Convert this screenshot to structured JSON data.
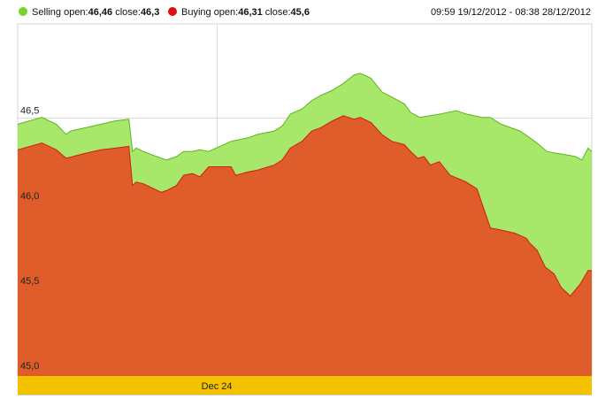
{
  "legend": {
    "selling": {
      "prefix": "Selling open:",
      "open": "46,46",
      "close_label": " close:",
      "close": "46,3",
      "color": "#77d22b"
    },
    "buying": {
      "prefix": "Buying open:",
      "open": "46,31",
      "close_label": " close:",
      "close": "45,6",
      "color": "#e01010"
    },
    "range": "09:59 19/12/2012 - 08:38 28/12/2012"
  },
  "chart_data": {
    "type": "area",
    "ylim": [
      44.98,
      47.05
    ],
    "y_ticks": [
      {
        "value": 46.5,
        "label": "46,5"
      },
      {
        "value": 46.0,
        "label": "46,0"
      },
      {
        "value": 45.5,
        "label": "45,5"
      },
      {
        "value": 45.0,
        "label": "45,0"
      }
    ],
    "x_range": [
      0,
      64
    ],
    "x_markers": [
      {
        "x": 22.2,
        "label": "Dec 24"
      }
    ],
    "grid": true,
    "legend_position": "top-left",
    "series": [
      {
        "name": "Selling",
        "fill": "#a7e86a",
        "stroke": "#5bb51d",
        "x": [
          0,
          2.7,
          4.3,
          5.4,
          5.9,
          7.6,
          9.3,
          10.9,
          12.4,
          12.8,
          13.2,
          14.0,
          16.0,
          16.6,
          17.7,
          18.5,
          19.5,
          20.3,
          21.3,
          23.8,
          25.7,
          26.7,
          28.6,
          29.5,
          30.4,
          31.7,
          32.8,
          33.8,
          35.1,
          36.3,
          37.5,
          38.2,
          39.4,
          40.6,
          41.7,
          43.1,
          43.8,
          44.8,
          46.0,
          47.1,
          48.9,
          50.0,
          51.8,
          52.7,
          53.9,
          56.0,
          57.1,
          57.9,
          59.0,
          60.0,
          61.2,
          62.2,
          62.9,
          63.6,
          64.0
        ],
        "y": [
          46.46,
          46.5,
          46.46,
          46.4,
          46.42,
          46.44,
          46.46,
          46.48,
          46.49,
          46.3,
          46.32,
          46.3,
          46.26,
          46.25,
          46.27,
          46.3,
          46.3,
          46.31,
          46.3,
          46.36,
          46.38,
          46.4,
          46.42,
          46.45,
          46.52,
          46.55,
          46.6,
          46.63,
          46.66,
          46.7,
          46.75,
          46.76,
          46.73,
          46.65,
          46.62,
          46.58,
          46.53,
          46.5,
          46.51,
          46.52,
          46.54,
          46.52,
          46.5,
          46.5,
          46.46,
          46.42,
          46.38,
          46.35,
          46.3,
          46.29,
          46.28,
          46.27,
          46.25,
          46.32,
          46.3
        ]
      },
      {
        "name": "Buying",
        "fill": "#df5c2b",
        "stroke": "#cf1f10",
        "x": [
          0,
          2.7,
          4.3,
          5.4,
          7.6,
          9.3,
          10.9,
          12.4,
          12.8,
          13.2,
          14.0,
          16.0,
          16.6,
          17.7,
          18.5,
          19.5,
          20.3,
          21.3,
          22.3,
          23.8,
          24.3,
          25.7,
          26.7,
          28.6,
          29.5,
          30.4,
          31.7,
          32.8,
          33.8,
          35.1,
          36.3,
          37.5,
          38.2,
          39.4,
          40.6,
          41.7,
          43.1,
          43.8,
          44.6,
          45.3,
          46.0,
          47.0,
          48.2,
          49.6,
          50.0,
          51.2,
          52.7,
          53.7,
          55.4,
          56.7,
          57.1,
          57.9,
          58.8,
          59.8,
          60.6,
          61.6,
          62.7,
          63.6,
          64.0
        ],
        "y": [
          46.31,
          46.35,
          46.31,
          46.26,
          46.29,
          46.31,
          46.32,
          46.33,
          46.1,
          46.12,
          46.11,
          46.06,
          46.07,
          46.1,
          46.16,
          46.17,
          46.15,
          46.21,
          46.21,
          46.21,
          46.16,
          46.18,
          46.19,
          46.22,
          46.25,
          46.32,
          46.36,
          46.42,
          46.44,
          46.48,
          46.51,
          46.49,
          46.5,
          46.47,
          46.4,
          46.36,
          46.34,
          46.3,
          46.26,
          46.27,
          46.22,
          46.24,
          46.16,
          46.13,
          46.12,
          46.08,
          45.85,
          45.84,
          45.82,
          45.79,
          45.76,
          45.72,
          45.62,
          45.58,
          45.5,
          45.45,
          45.52,
          45.6,
          45.6
        ]
      }
    ]
  }
}
